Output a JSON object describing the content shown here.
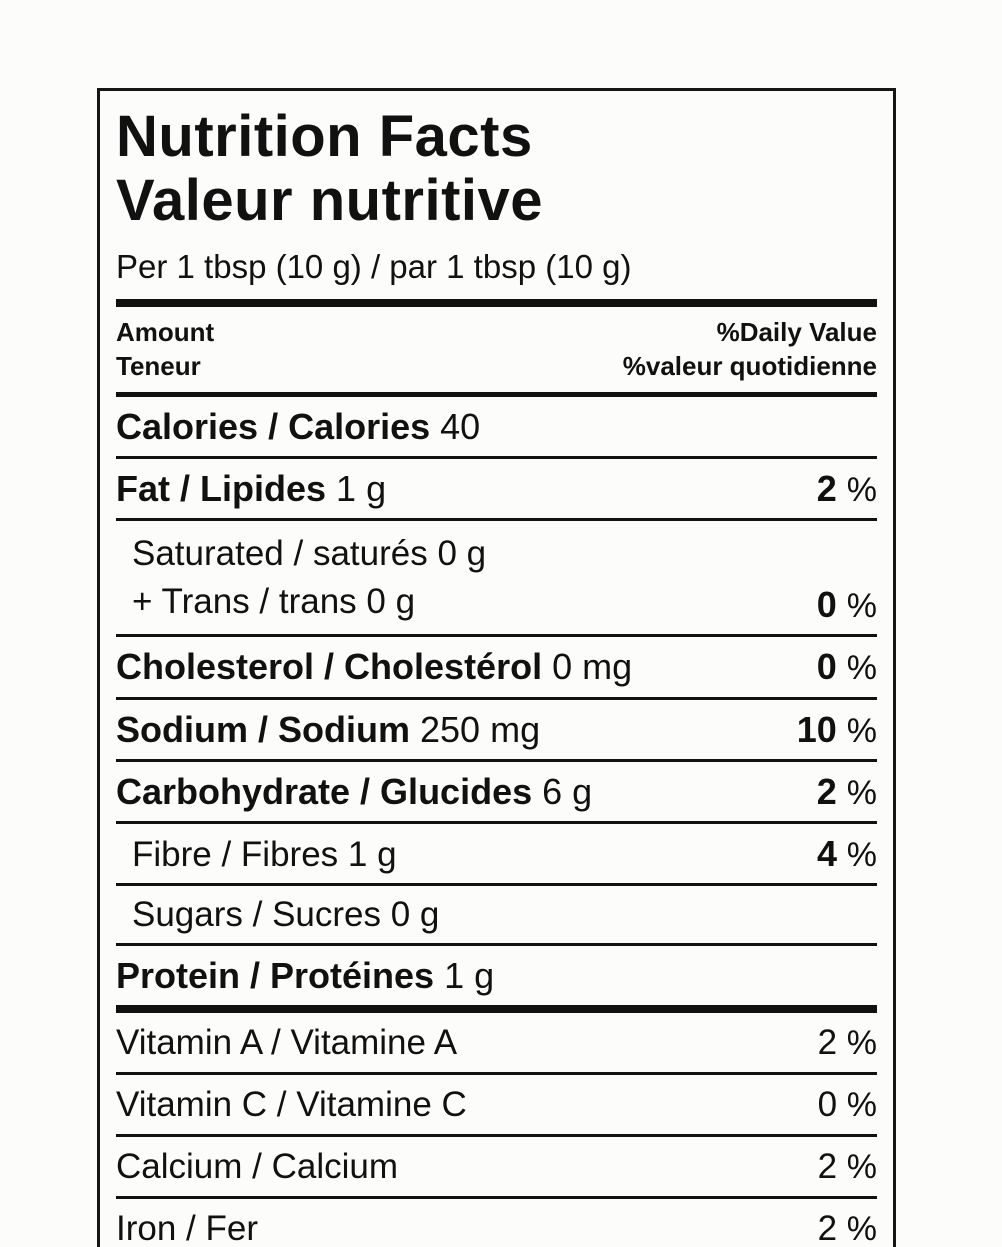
{
  "label": {
    "title_en": "Nutrition Facts",
    "title_fr": "Valeur nutritive",
    "serving": "Per 1 tbsp (10 g) / par 1 tbsp (10 g)",
    "header": {
      "amount_en": "Amount",
      "amount_fr": "Teneur",
      "daily_value_en": "%Daily Value",
      "daily_value_fr": "%valeur quotidienne"
    },
    "percent_sign": "%",
    "calories": {
      "label": "Calories / Calories",
      "value": "40"
    },
    "nutrients": [
      {
        "label": "Fat / Lipides",
        "amount": "1 g",
        "dv": "2"
      },
      {
        "label": "Saturated / saturés",
        "amount": "0 g",
        "dv": ""
      },
      {
        "label": "+ Trans / trans",
        "amount": "0 g",
        "dv": "0"
      },
      {
        "label": "Cholesterol / Cholestérol",
        "amount": "0 mg",
        "dv": "0"
      },
      {
        "label": "Sodium / Sodium",
        "amount": "250 mg",
        "dv": "10"
      },
      {
        "label": "Carbohydrate / Glucides",
        "amount": "6 g",
        "dv": "2"
      },
      {
        "label": "Fibre / Fibres",
        "amount": "1 g",
        "dv": "4"
      },
      {
        "label": "Sugars / Sucres",
        "amount": "0 g",
        "dv": ""
      },
      {
        "label": "Protein / Protéines",
        "amount": "1 g",
        "dv": ""
      }
    ],
    "vitamins": [
      {
        "label": "Vitamin A / Vitamine A",
        "dv": "2"
      },
      {
        "label": "Vitamin C / Vitamine C",
        "dv": "0"
      },
      {
        "label": "Calcium / Calcium",
        "dv": "2"
      },
      {
        "label": "Iron / Fer",
        "dv": "2"
      }
    ],
    "colors": {
      "ink": "#111111",
      "background": "#fcfcfb"
    }
  }
}
